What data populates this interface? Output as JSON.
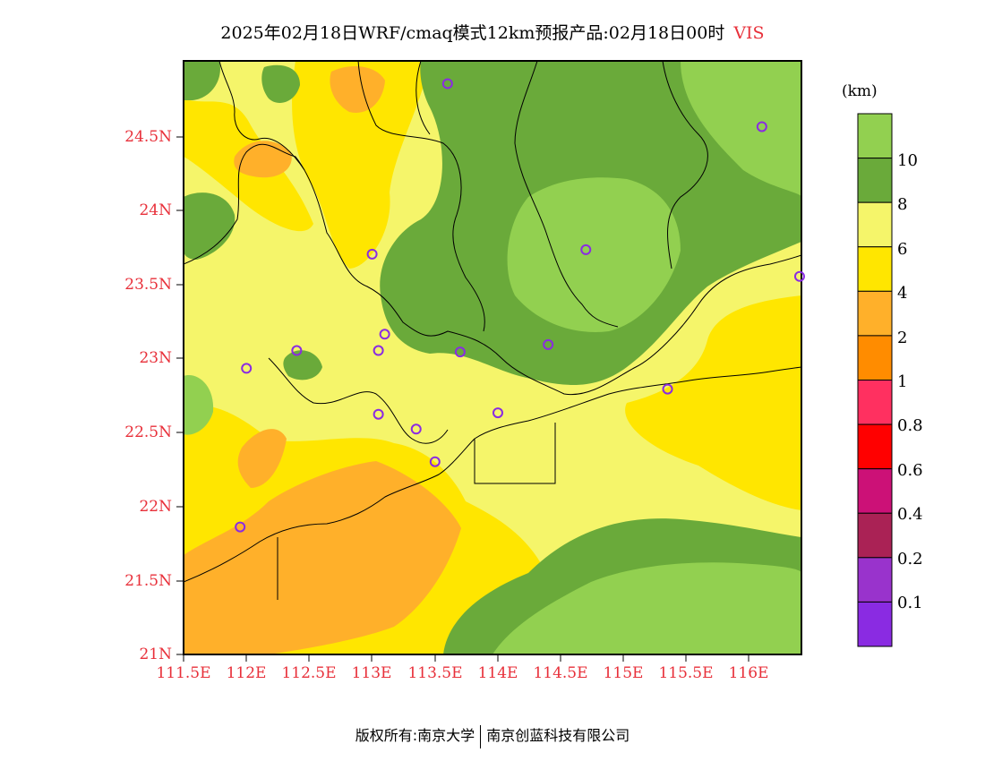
{
  "title": {
    "text": "2025年02月18日WRF/cmaq模式12km预报产品:02月18日00时",
    "variable": "VIS"
  },
  "lat_labels": [
    "24.5N",
    "24N",
    "23.5N",
    "23N",
    "22.5N",
    "22N",
    "21.5N",
    "21N"
  ],
  "lon_labels": [
    "111.5E",
    "112E",
    "112.5E",
    "113E",
    "113.5E",
    "114E",
    "114.5E",
    "115E",
    "115.5E",
    "116E"
  ],
  "colorbar": {
    "unit": "(km)",
    "labels": [
      "10",
      "8",
      "6",
      "4",
      "2",
      "1",
      "0.8",
      "0.6",
      "0.4",
      "0.2",
      "0.1"
    ],
    "colors": [
      "#92d050",
      "#6aaa3a",
      "#f5f56a",
      "#ffe600",
      "#ffb02a",
      "#ff8c00",
      "#ff3060",
      "#ff0000",
      "#cc1177",
      "#aa2255",
      "#9933cc",
      "#8a2be2"
    ]
  },
  "stations": [
    {
      "lon": 113.6,
      "lat": 24.85
    },
    {
      "lon": 116.1,
      "lat": 24.56
    },
    {
      "lon": 113.0,
      "lat": 23.7
    },
    {
      "lon": 114.7,
      "lat": 23.73
    },
    {
      "lon": 116.4,
      "lat": 23.55
    },
    {
      "lon": 112.4,
      "lat": 23.05
    },
    {
      "lon": 113.1,
      "lat": 23.16
    },
    {
      "lon": 113.05,
      "lat": 23.05
    },
    {
      "lon": 113.7,
      "lat": 23.04
    },
    {
      "lon": 114.4,
      "lat": 23.09
    },
    {
      "lon": 112.0,
      "lat": 22.93
    },
    {
      "lon": 115.35,
      "lat": 22.79
    },
    {
      "lon": 113.05,
      "lat": 22.62
    },
    {
      "lon": 114.0,
      "lat": 22.63
    },
    {
      "lon": 113.35,
      "lat": 22.52
    },
    {
      "lon": 113.5,
      "lat": 22.3
    },
    {
      "lon": 111.95,
      "lat": 21.86
    }
  ],
  "footer": {
    "copyright": "版权所有:南京大学",
    "company": "南京创蓝科技有限公司"
  }
}
